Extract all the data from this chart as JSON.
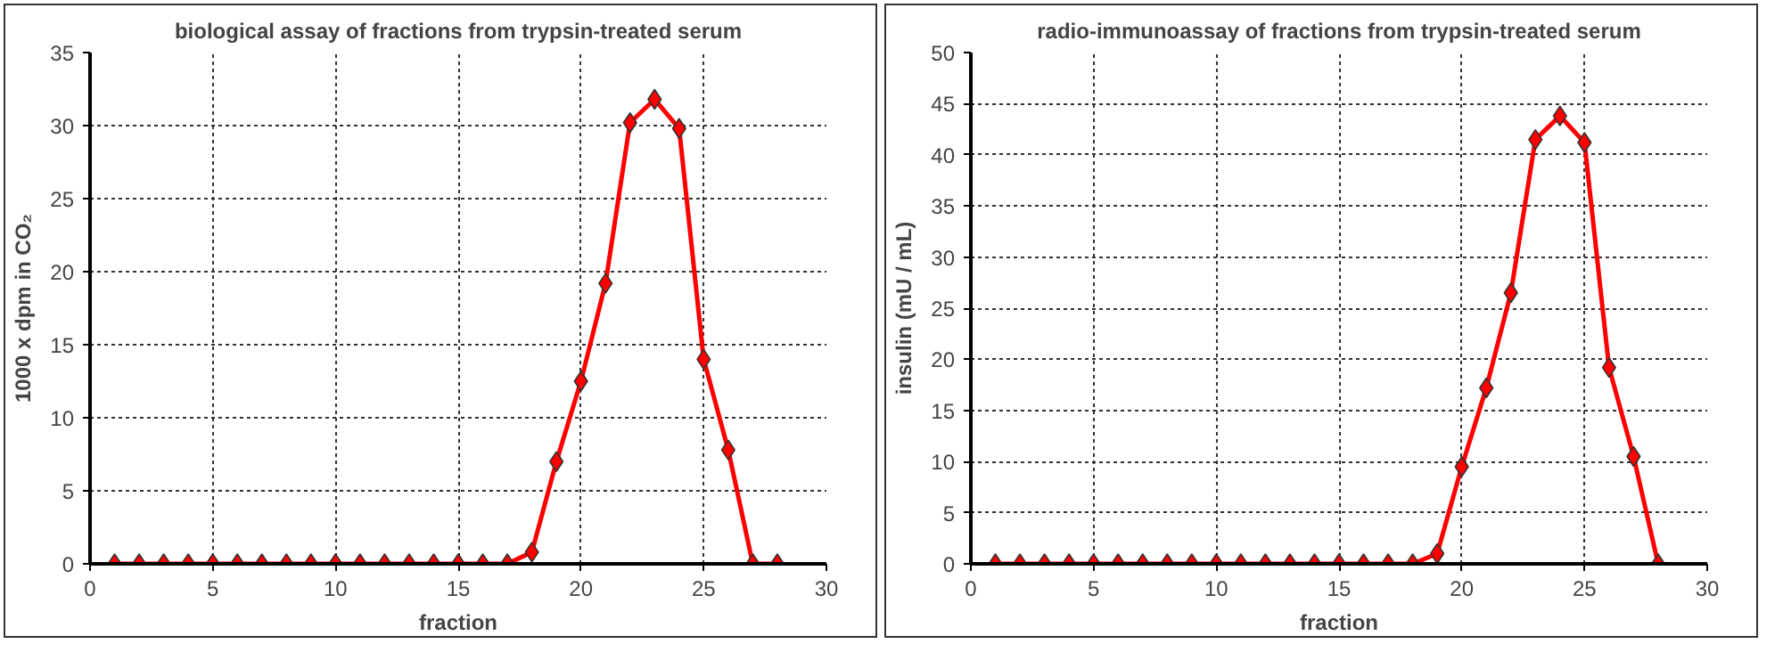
{
  "chart_data": [
    {
      "type": "line",
      "title": "biological assay of fractions from trypsin-treated serum",
      "xlabel": "fraction",
      "ylabel": "1000 x dpm in CO₂",
      "x": [
        1,
        2,
        3,
        4,
        5,
        6,
        7,
        8,
        9,
        10,
        11,
        12,
        13,
        14,
        15,
        16,
        17,
        18,
        19,
        20,
        21,
        22,
        23,
        24,
        25,
        26,
        27,
        28
      ],
      "series": [
        {
          "color": "#ff0000",
          "values": [
            0,
            0,
            0,
            0,
            0,
            0,
            0,
            0,
            0,
            0,
            0,
            0,
            0,
            0,
            0,
            0,
            0,
            0.8,
            7,
            12.5,
            19.2,
            30.2,
            31.8,
            29.8,
            14,
            7.8,
            0,
            0
          ]
        }
      ],
      "xlim": [
        0,
        30
      ],
      "xticks": [
        0,
        5,
        10,
        15,
        20,
        25,
        30
      ],
      "ylim": [
        0,
        35
      ],
      "yticks": [
        0,
        5,
        10,
        15,
        20,
        25,
        30,
        35
      ],
      "grid": true,
      "marker": "diamond",
      "line_style": "solid"
    },
    {
      "type": "line",
      "title": "radio-immunoassay of fractions from trypsin-treated serum",
      "xlabel": "fraction",
      "ylabel": "insulin (mU / mL)",
      "x": [
        1,
        2,
        3,
        4,
        5,
        6,
        7,
        8,
        9,
        10,
        11,
        12,
        13,
        14,
        15,
        16,
        17,
        18,
        19,
        20,
        21,
        22,
        23,
        24,
        25,
        26,
        27,
        28
      ],
      "series": [
        {
          "color": "#ff0000",
          "values": [
            0,
            0,
            0,
            0,
            0,
            0,
            0,
            0,
            0,
            0,
            0,
            0,
            0,
            0,
            0,
            0,
            0,
            0,
            1,
            9.5,
            17.2,
            26.5,
            41.5,
            43.8,
            41.2,
            19.2,
            10.5,
            0
          ]
        }
      ],
      "xlim": [
        0,
        30
      ],
      "xticks": [
        0,
        5,
        10,
        15,
        20,
        25,
        30
      ],
      "ylim": [
        0,
        50
      ],
      "yticks": [
        0,
        5,
        10,
        15,
        20,
        25,
        30,
        35,
        40,
        45,
        50
      ],
      "grid": true,
      "marker": "diamond",
      "line_style": "solid"
    }
  ]
}
